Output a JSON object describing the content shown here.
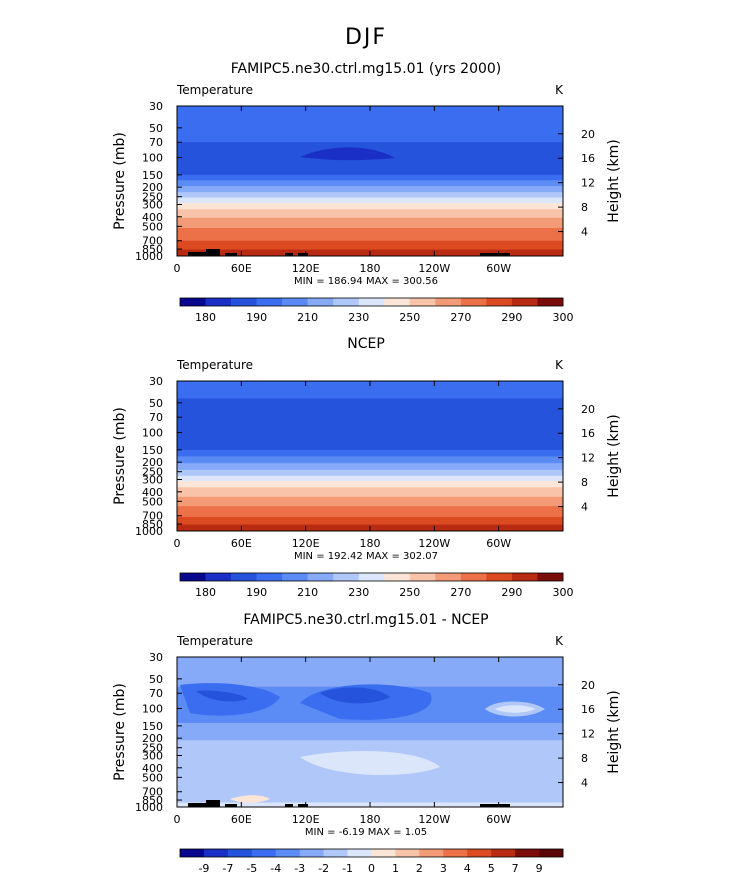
{
  "figure_title": "DJF",
  "chart_data": [
    {
      "type": "heatmap",
      "title": "FAMIPC5.ne30.ctrl.mg15.01 (yrs 2000)",
      "variable": "Temperature",
      "units": "K",
      "ylabel": "Pressure  (mb)",
      "ylabel_right": "Height  (km)",
      "x_ticks": [
        "0",
        "60E",
        "120E",
        "180",
        "120W",
        "60W"
      ],
      "y_ticks": [
        "30",
        "50",
        "70",
        "100",
        "150",
        "200",
        "250",
        "300",
        "400",
        "500",
        "700",
        "850",
        "1000"
      ],
      "height_ticks": [
        "20",
        "16",
        "12",
        "8",
        "4"
      ],
      "min_text": "MIN = 186.94  MAX = 300.56",
      "min": 186.94,
      "max": 300.56,
      "colorbar": {
        "colors": [
          "#08088f",
          "#1a2fc6",
          "#2553dc",
          "#3b6df0",
          "#5b8bf5",
          "#86aaf7",
          "#b0c8f9",
          "#dbe6fb",
          "#fbe5d6",
          "#f8c3a8",
          "#f39b76",
          "#ec7048",
          "#dc4a22",
          "#b82a12",
          "#7a0d0a"
        ],
        "labels": [
          "180",
          "190",
          "210",
          "230",
          "250",
          "270",
          "290",
          "300"
        ]
      }
    },
    {
      "type": "heatmap",
      "title": "NCEP",
      "variable": "Temperature",
      "units": "K",
      "ylabel": "Pressure  (mb)",
      "ylabel_right": "Height  (km)",
      "x_ticks": [
        "0",
        "60E",
        "120E",
        "180",
        "120W",
        "60W"
      ],
      "y_ticks": [
        "30",
        "50",
        "70",
        "100",
        "150",
        "200",
        "250",
        "300",
        "400",
        "500",
        "700",
        "850",
        "1000"
      ],
      "height_ticks": [
        "20",
        "16",
        "12",
        "8",
        "4"
      ],
      "min_text": "MIN = 192.42  MAX = 302.07",
      "min": 192.42,
      "max": 302.07,
      "colorbar": {
        "colors": [
          "#08088f",
          "#1a2fc6",
          "#2553dc",
          "#3b6df0",
          "#5b8bf5",
          "#86aaf7",
          "#b0c8f9",
          "#dbe6fb",
          "#fbe5d6",
          "#f8c3a8",
          "#f39b76",
          "#ec7048",
          "#dc4a22",
          "#b82a12",
          "#7a0d0a"
        ],
        "labels": [
          "180",
          "190",
          "210",
          "230",
          "250",
          "270",
          "290",
          "300"
        ]
      }
    },
    {
      "type": "heatmap",
      "title": "FAMIPC5.ne30.ctrl.mg15.01 - NCEP",
      "variable": "Temperature",
      "units": "K",
      "ylabel": "Pressure  (mb)",
      "ylabel_right": "Height  (km)",
      "x_ticks": [
        "0",
        "60E",
        "120E",
        "180",
        "120W",
        "60W"
      ],
      "y_ticks": [
        "30",
        "50",
        "70",
        "100",
        "150",
        "200",
        "250",
        "300",
        "400",
        "500",
        "700",
        "850",
        "1000"
      ],
      "height_ticks": [
        "20",
        "16",
        "12",
        "8",
        "4"
      ],
      "min_text": "MIN =  -6.19  MAX =   1.05",
      "min": -6.19,
      "max": 1.05,
      "colorbar": {
        "colors": [
          "#08088f",
          "#1a2fc6",
          "#2553dc",
          "#3b6df0",
          "#5b8bf5",
          "#86aaf7",
          "#b0c8f9",
          "#dbe6fb",
          "#fbe5d6",
          "#f8c3a8",
          "#f39b76",
          "#ec7048",
          "#dc4a22",
          "#b82a12",
          "#7a0d0a",
          "#5a0606"
        ],
        "labels": [
          "-9",
          "-7",
          "-5",
          "-4",
          "-3",
          "-2",
          "-1",
          "0",
          "1",
          "2",
          "3",
          "4",
          "5",
          "7",
          "9"
        ]
      }
    }
  ]
}
